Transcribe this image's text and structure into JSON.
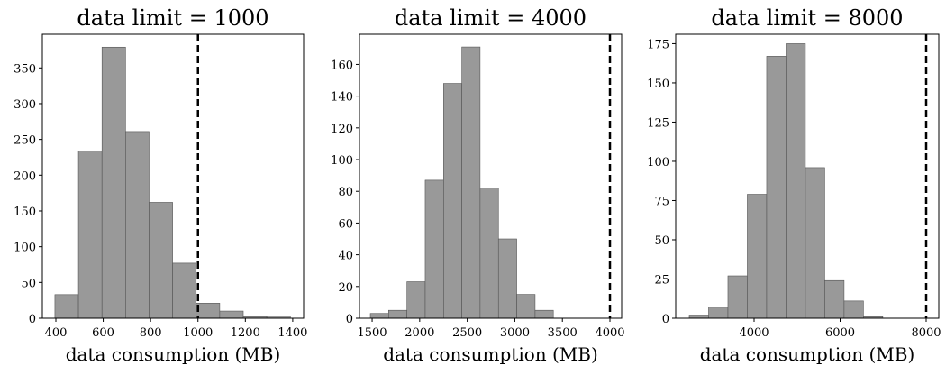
{
  "chart_data": [
    {
      "type": "histogram",
      "title": "data limit = 1000",
      "xlabel": "data consumption (MB)",
      "bins": [
        396,
        495.4,
        594.8,
        694.2,
        793.6,
        893,
        992.4,
        1091.8,
        1191.2,
        1290.6,
        1390
      ],
      "values": [
        33,
        234,
        379,
        261,
        162,
        77,
        21,
        10,
        2,
        3
      ],
      "threshold": 1000,
      "color": "#999999",
      "xlim": [
        343,
        1446
      ],
      "xticks": [
        400,
        600,
        800,
        1000,
        1200,
        1400
      ],
      "ylim": [
        0,
        397
      ],
      "yticks": [
        0,
        50,
        100,
        150,
        200,
        250,
        300,
        350
      ]
    },
    {
      "type": "histogram",
      "title": "data limit = 4000",
      "xlabel": "data consumption (MB)",
      "bins": [
        1481,
        1673,
        1866,
        2058,
        2251,
        2443,
        2635,
        2828,
        3020,
        3213,
        3405
      ],
      "values": [
        3,
        5,
        23,
        87,
        148,
        171,
        82,
        50,
        15,
        5
      ],
      "threshold": 4000,
      "color": "#999999",
      "xlim": [
        1367,
        4123
      ],
      "xticks": [
        1500,
        2000,
        2500,
        3000,
        3500,
        4000
      ],
      "ylim": [
        0,
        179
      ],
      "yticks": [
        0,
        20,
        40,
        60,
        80,
        100,
        120,
        140,
        160
      ]
    },
    {
      "type": "histogram",
      "title": "data limit = 8000",
      "xlabel": "data consumption (MB)",
      "bins": [
        2492,
        2942,
        3392,
        3842,
        4292,
        4742,
        5192,
        5642,
        6092,
        6542,
        6992
      ],
      "values": [
        2,
        7,
        27,
        79,
        167,
        175,
        96,
        24,
        11,
        1
      ],
      "threshold": 8000,
      "color": "#999999",
      "xlim": [
        2178,
        8293
      ],
      "xticks": [
        4000,
        6000,
        8000
      ],
      "ylim": [
        0,
        181
      ],
      "yticks": [
        0,
        25,
        50,
        75,
        100,
        125,
        150,
        175
      ]
    }
  ]
}
